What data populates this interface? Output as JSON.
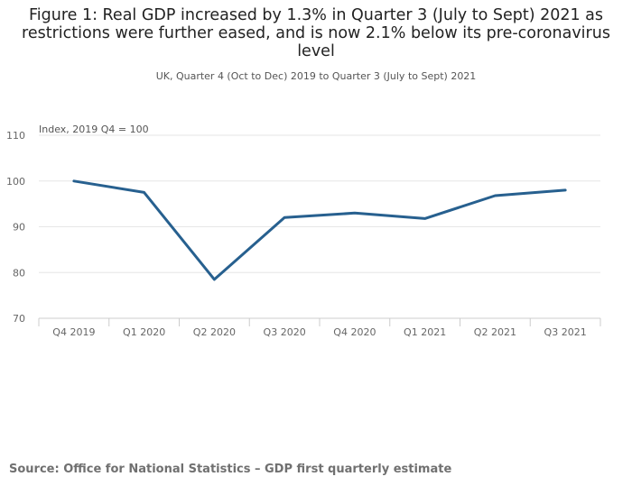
{
  "title": "Figure 1: Real GDP increased by 1.3% in Quarter 3 (July to Sept) 2021 as restrictions were further eased, and is now 2.1% below its pre-coronavirus level",
  "subtitle": "UK, Quarter 4 (Oct to Dec) 2019 to Quarter 3 (July to Sept) 2021",
  "source": "Source: Office for National Statistics – GDP first quarterly estimate",
  "colors": {
    "line": "#27608f",
    "grid": "#e6e6e6",
    "axis": "#cccccc",
    "tick_text": "#666666"
  },
  "chart_data": {
    "type": "line",
    "title": "Figure 1: Real GDP increased by 1.3% in Quarter 3 (July to Sept) 2021 as restrictions were further eased, and is now 2.1% below its pre-coronavirus level",
    "subtitle": "UK, Quarter 4 (Oct to Dec) 2019 to Quarter 3 (July to Sept) 2021",
    "xlabel": "",
    "ylabel": "Index, 2019 Q4 = 100",
    "categories": [
      "Q4 2019",
      "Q1 2020",
      "Q2 2020",
      "Q3 2020",
      "Q4 2020",
      "Q1 2021",
      "Q2 2021",
      "Q3 2021"
    ],
    "series": [
      {
        "name": "Real GDP",
        "values": [
          100.0,
          97.5,
          78.5,
          92.0,
          93.0,
          91.8,
          96.8,
          98.0
        ]
      }
    ],
    "ylim": [
      70,
      110
    ],
    "yticks": [
      70,
      80,
      90,
      100,
      110
    ],
    "grid": true,
    "legend": "none"
  }
}
